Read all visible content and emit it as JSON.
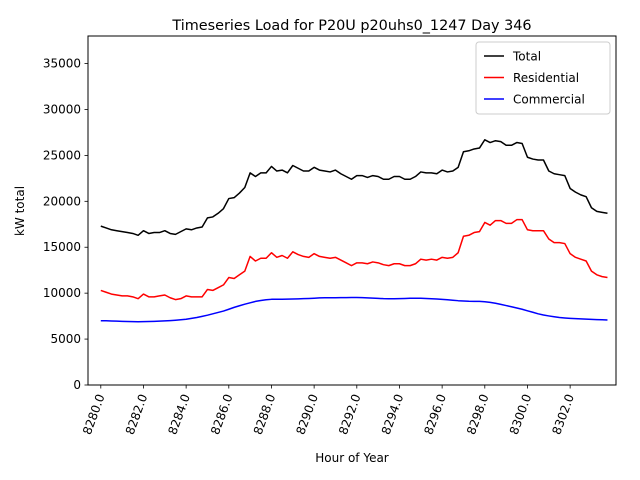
{
  "chart_data": {
    "type": "line",
    "title": "Timeseries Load for P20U p20uhs0_1247  Day 346",
    "xlabel": "Hour of Year",
    "ylabel": "kW total",
    "xlim": [
      8279.4,
      8304.15
    ],
    "ylim": [
      0,
      38000
    ],
    "xticks": [
      8280,
      8282,
      8284,
      8286,
      8288,
      8290,
      8292,
      8294,
      8296,
      8298,
      8300,
      8302
    ],
    "xtick_labels": [
      "8280.0",
      "8282.0",
      "8284.0",
      "8286.0",
      "8288.0",
      "8290.0",
      "8292.0",
      "8294.0",
      "8296.0",
      "8298.0",
      "8300.0",
      "8302.0"
    ],
    "yticks": [
      0,
      5000,
      10000,
      15000,
      20000,
      25000,
      30000,
      35000
    ],
    "ytick_labels": [
      "0",
      "5000",
      "10000",
      "15000",
      "20000",
      "25000",
      "30000",
      "35000"
    ],
    "grid": false,
    "legend_position": "top-right",
    "x_start": 8280,
    "x_step": 0.25,
    "series": [
      {
        "name": "Total",
        "color": "#000000",
        "values": [
          17300,
          17100,
          16900,
          16800,
          16700,
          16600,
          16500,
          16300,
          16800,
          16500,
          16600,
          16600,
          16800,
          16500,
          16400,
          16700,
          17000,
          16900,
          17100,
          17200,
          18200,
          18300,
          18700,
          19200,
          20300,
          20400,
          20900,
          21500,
          23100,
          22700,
          23100,
          23100,
          23800,
          23300,
          23400,
          23100,
          23900,
          23600,
          23300,
          23300,
          23700,
          23400,
          23300,
          23200,
          23400,
          23000,
          22700,
          22400,
          22800,
          22800,
          22600,
          22800,
          22700,
          22400,
          22400,
          22700,
          22700,
          22400,
          22400,
          22700,
          23200,
          23100,
          23100,
          23000,
          23400,
          23200,
          23300,
          23700,
          25400,
          25500,
          25700,
          25800,
          26700,
          26400,
          26600,
          26500,
          26100,
          26100,
          26400,
          26300,
          24800,
          24600,
          24500,
          24500,
          23300,
          23000,
          22900,
          22800,
          21400,
          21000,
          20700,
          20500,
          19300,
          18900,
          18800,
          18700
        ]
      },
      {
        "name": "Residential",
        "color": "#ff0000",
        "values": [
          10300,
          10100,
          9900,
          9800,
          9700,
          9700,
          9600,
          9400,
          9900,
          9600,
          9600,
          9700,
          9800,
          9500,
          9300,
          9400,
          9700,
          9600,
          9600,
          9600,
          10400,
          10300,
          10600,
          10900,
          11700,
          11600,
          12000,
          12400,
          14000,
          13500,
          13800,
          13800,
          14400,
          13900,
          14100,
          13800,
          14500,
          14200,
          14000,
          13900,
          14300,
          14000,
          13900,
          13800,
          13900,
          13600,
          13300,
          13000,
          13300,
          13300,
          13200,
          13400,
          13300,
          13100,
          13000,
          13200,
          13200,
          13000,
          13000,
          13200,
          13700,
          13600,
          13700,
          13600,
          13900,
          13800,
          13900,
          14400,
          16200,
          16300,
          16600,
          16700,
          17700,
          17400,
          17900,
          17900,
          17600,
          17600,
          18000,
          18000,
          16900,
          16800,
          16800,
          16800,
          15900,
          15500,
          15500,
          15400,
          14300,
          13900,
          13700,
          13500,
          12400,
          12000,
          11800,
          11700
        ]
      },
      {
        "name": "Commercial",
        "color": "#0000ff",
        "values": [
          7000,
          6990,
          6970,
          6950,
          6930,
          6910,
          6900,
          6890,
          6900,
          6910,
          6930,
          6950,
          6980,
          7010,
          7050,
          7100,
          7160,
          7250,
          7350,
          7470,
          7600,
          7750,
          7900,
          8050,
          8250,
          8450,
          8630,
          8800,
          8950,
          9100,
          9200,
          9280,
          9330,
          9340,
          9340,
          9350,
          9360,
          9380,
          9400,
          9420,
          9450,
          9480,
          9500,
          9500,
          9500,
          9510,
          9520,
          9530,
          9530,
          9510,
          9490,
          9460,
          9430,
          9400,
          9390,
          9390,
          9400,
          9420,
          9440,
          9450,
          9440,
          9420,
          9390,
          9360,
          9320,
          9280,
          9230,
          9180,
          9150,
          9120,
          9110,
          9100,
          9070,
          9000,
          8900,
          8780,
          8650,
          8520,
          8380,
          8250,
          8080,
          7920,
          7750,
          7620,
          7520,
          7430,
          7350,
          7300,
          7260,
          7230,
          7200,
          7170,
          7140,
          7120,
          7100,
          7080
        ]
      }
    ]
  }
}
